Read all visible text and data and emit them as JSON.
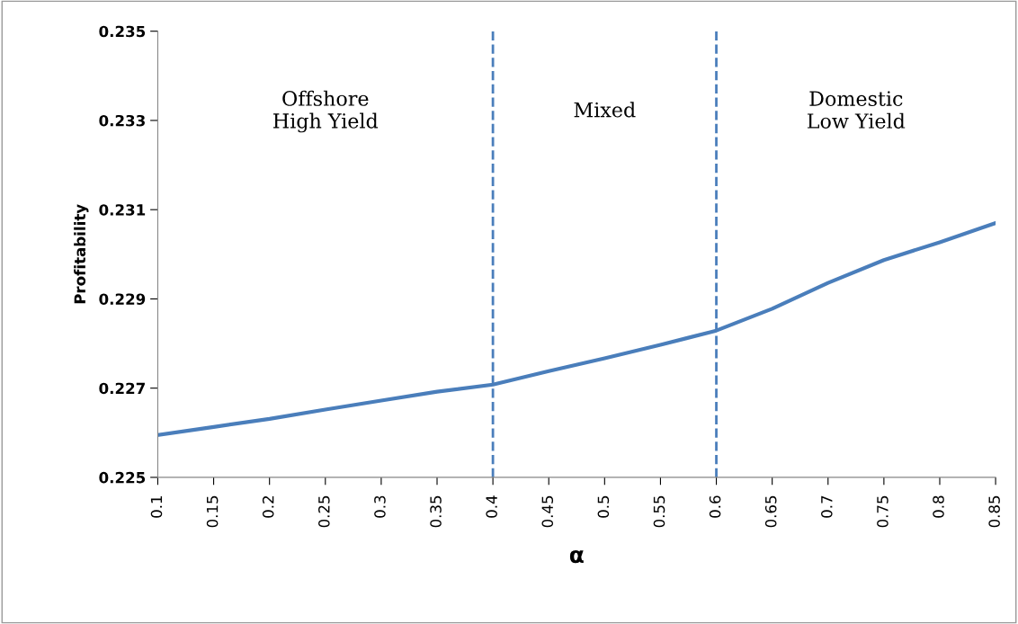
{
  "chart_data": {
    "type": "line",
    "categories": [
      "0.1",
      "0.15",
      "0.2",
      "0.25",
      "0.3",
      "0.35",
      "0.4",
      "0.45",
      "0.5",
      "0.55",
      "0.6",
      "0.65",
      "0.7",
      "0.75",
      "0.8",
      "0.85"
    ],
    "series": [
      {
        "color": "#4a7ebb",
        "values": [
          0.22595,
          0.22613,
          0.22631,
          0.22652,
          0.22672,
          0.22692,
          0.22708,
          0.22738,
          0.22767,
          0.22797,
          0.22829,
          0.22878,
          0.22936,
          0.22987,
          0.23027,
          0.2307
        ]
      }
    ],
    "xlabel": "α",
    "ylabel": "Profitability",
    "ylim": [
      0.225,
      0.235
    ],
    "yticks": [
      0.225,
      0.227,
      0.229,
      0.231,
      0.233,
      0.235
    ],
    "ref_lines": [
      {
        "axis": "x",
        "value": "0.4",
        "color": "#4a7ebb",
        "line_style": "dashed"
      },
      {
        "axis": "x",
        "value": "0.6",
        "color": "#4a7ebb",
        "line_style": "dashed"
      }
    ],
    "annotations": [
      "Offshore\nHigh Yield",
      "Mixed",
      "Domestic\nLow Yield"
    ],
    "grid": false,
    "legend": false,
    "marker": "none",
    "line_style": "solid"
  }
}
